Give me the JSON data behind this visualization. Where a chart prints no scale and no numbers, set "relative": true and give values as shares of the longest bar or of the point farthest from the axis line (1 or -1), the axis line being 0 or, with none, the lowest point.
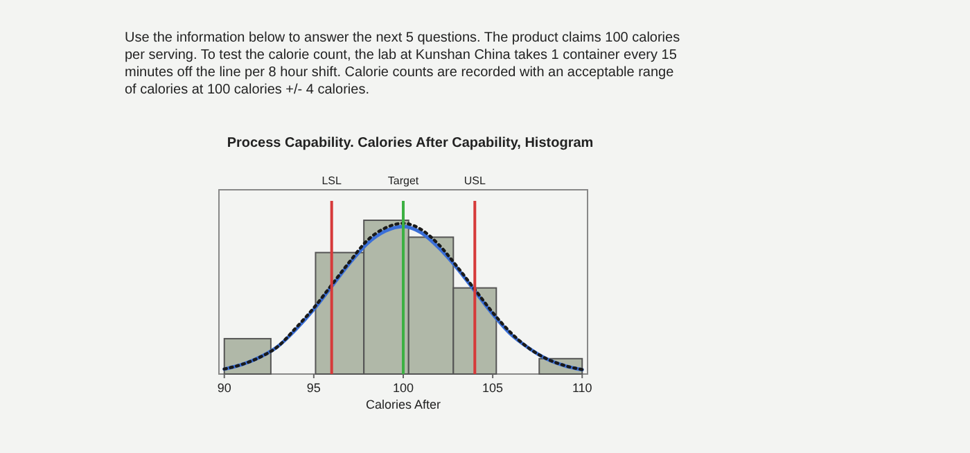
{
  "chart_data": {
    "type": "histogram",
    "title": "Process Capability.  Calories After Capability, Histogram",
    "xlabel": "Calories After",
    "annotations": [
      "Use the information below to answer the next 5 questions. The product claims 100 calories per serving. To test the calorie count, the lab at Kunshan China takes 1 container every 15 minutes off the line per 8 hour shift. Calorie counts are recorded with an acceptable range of calories at 100 calories +/- 4 calories."
    ],
    "relative": true,
    "bins": [
      90,
      92.6,
      95.1,
      97.8,
      100.3,
      102.8,
      105.2,
      107.6,
      110
    ],
    "xlim": [
      89.7,
      110.3
    ],
    "xticks": [
      90,
      95,
      100,
      105,
      110
    ],
    "series": [
      {
        "color": "#a3ad9b",
        "values": [
          0.23,
          0,
          0.79,
          1,
          0.89,
          0.56,
          0,
          0.1
        ]
      },
      {
        "type": "line",
        "color": "#3a6fd8",
        "line_style": "solid",
        "x": [
          90,
          91,
          92,
          93,
          94,
          95,
          96,
          97,
          98,
          99,
          100,
          101,
          102,
          103,
          104,
          105,
          106,
          107,
          108,
          109,
          110
        ],
        "values": [
          0.032,
          0.062,
          0.11,
          0.18,
          0.29,
          0.42,
          0.57,
          0.72,
          0.85,
          0.93,
          0.96,
          0.92,
          0.82,
          0.69,
          0.54,
          0.39,
          0.26,
          0.17,
          0.099,
          0.055,
          0.028
        ]
      },
      {
        "type": "line",
        "color": "#1a1a1a",
        "line_style": "dotted",
        "x": [
          90,
          91,
          92,
          93,
          94,
          95,
          96,
          97,
          98,
          99,
          100,
          101,
          102,
          103,
          104,
          105,
          106,
          107,
          108,
          109,
          110
        ],
        "values": [
          0.033,
          0.063,
          0.11,
          0.18,
          0.3,
          0.43,
          0.58,
          0.73,
          0.87,
          0.95,
          0.98,
          0.94,
          0.84,
          0.7,
          0.55,
          0.4,
          0.27,
          0.17,
          0.1,
          0.056,
          0.029
        ]
      }
    ],
    "ref_lines": [
      {
        "axis": "x",
        "value": 96,
        "label": "LSL",
        "color": "#d63a3a"
      },
      {
        "axis": "x",
        "value": 100,
        "label": "Target",
        "color": "#3cb043"
      },
      {
        "axis": "x",
        "value": 104,
        "label": "USL",
        "color": "#d63a3a"
      }
    ]
  }
}
